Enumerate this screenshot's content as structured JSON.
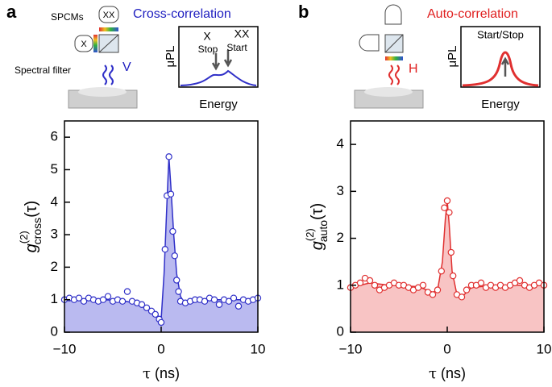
{
  "chart_data": [
    {
      "type": "scatter",
      "panel_label": "a",
      "xlabel": {
        "symbol": "τ",
        "unit": "(ns)"
      },
      "ylabel": {
        "symbol": "g",
        "superscript": "(2)",
        "subscript": "cross",
        "argument": "(τ)"
      },
      "xlim": [
        -10,
        10
      ],
      "ylim": [
        0,
        6.5
      ],
      "xticks": [
        {
          "value": -10,
          "label": "−10"
        },
        0,
        10
      ],
      "yticks": [
        0,
        1,
        2,
        3,
        4,
        5,
        6
      ],
      "series": [
        {
          "type": "area",
          "color": "#3030c8",
          "fill": "#babaf0",
          "x": [
            -10,
            -6,
            -4,
            -2,
            -1,
            -0.5,
            0,
            0.3,
            0.6,
            0.8,
            1.0,
            1.3,
            1.6,
            2,
            2.5,
            3,
            5,
            10
          ],
          "values": [
            1,
            1,
            0.97,
            0.85,
            0.7,
            0.55,
            0.4,
            1.8,
            4.0,
            5.4,
            4.5,
            3.0,
            1.8,
            1.1,
            0.85,
            0.9,
            1.0,
            1.0
          ]
        },
        {
          "type": "scatter",
          "color": "#3030c8",
          "x": [
            -10,
            -9.5,
            -9,
            -8.5,
            -8,
            -7.5,
            -7,
            -6.5,
            -6,
            -5.5,
            -5,
            -4.5,
            -4,
            -3.5,
            -3,
            -2.5,
            -2,
            -1.5,
            -1,
            -0.6,
            -0.2,
            0,
            0.4,
            0.6,
            0.8,
            1.0,
            1.2,
            1.4,
            1.6,
            1.8,
            2,
            2.5,
            3,
            3.5,
            4,
            4.5,
            5,
            5.5,
            6,
            6.5,
            7,
            7.5,
            8,
            8.5,
            9,
            9.5,
            10
          ],
          "values": [
            1.0,
            1.05,
            1.0,
            1.05,
            0.95,
            1.05,
            1.0,
            0.95,
            1.0,
            1.1,
            0.95,
            1.0,
            0.95,
            1.25,
            0.95,
            0.9,
            0.85,
            0.75,
            0.65,
            0.55,
            0.4,
            0.3,
            2.55,
            4.2,
            5.4,
            4.25,
            3.1,
            2.35,
            1.6,
            1.25,
            0.95,
            0.9,
            0.95,
            1.0,
            1.0,
            0.95,
            1.05,
            1.0,
            0.85,
            1.0,
            0.95,
            1.05,
            0.8,
            1.0,
            0.95,
            1.0,
            1.05
          ]
        }
      ]
    },
    {
      "type": "scatter",
      "panel_label": "b",
      "xlabel": {
        "symbol": "τ",
        "unit": "(ns)"
      },
      "ylabel": {
        "symbol": "g",
        "superscript": "(2)",
        "subscript": "auto",
        "argument": "(τ)"
      },
      "xlim": [
        -10,
        10
      ],
      "ylim": [
        0,
        4.5
      ],
      "xticks": [
        {
          "value": -10,
          "label": "−10"
        },
        0,
        10
      ],
      "yticks": [
        0,
        1,
        2,
        3,
        4
      ],
      "series": [
        {
          "type": "area",
          "color": "#e03030",
          "fill": "#f8c4c4",
          "x": [
            -10,
            -8,
            -6,
            -3,
            -1.5,
            -1,
            -0.5,
            -0.2,
            0,
            0.2,
            0.5,
            1,
            1.5,
            2.5,
            5,
            8,
            10
          ],
          "values": [
            0.95,
            1.05,
            1.0,
            0.97,
            0.85,
            0.9,
            1.5,
            2.4,
            2.8,
            2.3,
            1.3,
            0.8,
            0.75,
            0.95,
            1.0,
            1.0,
            1.0
          ]
        },
        {
          "type": "scatter",
          "color": "#e03030",
          "x": [
            -10,
            -9.5,
            -9,
            -8.5,
            -8,
            -7.5,
            -7,
            -6.5,
            -6,
            -5.5,
            -5,
            -4.5,
            -4,
            -3.5,
            -3,
            -2.5,
            -2,
            -1.5,
            -1,
            -0.6,
            -0.3,
            0,
            0.2,
            0.4,
            0.6,
            1,
            1.5,
            2,
            2.5,
            3,
            3.5,
            4,
            4.5,
            5,
            5.5,
            6,
            6.5,
            7,
            7.5,
            8,
            8.5,
            9,
            9.5,
            10
          ],
          "values": [
            0.95,
            1.0,
            1.05,
            1.15,
            1.1,
            1.0,
            0.9,
            0.95,
            1.0,
            1.05,
            1.0,
            1.0,
            0.95,
            0.9,
            0.95,
            1.0,
            0.85,
            0.8,
            0.9,
            1.3,
            2.65,
            2.8,
            2.55,
            1.7,
            1.2,
            0.8,
            0.75,
            0.9,
            1.0,
            1.0,
            1.05,
            0.95,
            1.0,
            0.95,
            1.0,
            0.95,
            1.0,
            1.05,
            1.1,
            1.0,
            0.95,
            1.0,
            1.05,
            1.0
          ]
        }
      ]
    }
  ],
  "insets": [
    {
      "title": "Cross-correlation",
      "detector": "SPCMs",
      "detector_xx": "XX",
      "detector_x": "X",
      "filter": "Spectral filter",
      "polarization": "V",
      "spectrum_ylabel": "μPL",
      "peak_x": "X",
      "peak_xx": "XX",
      "stop": "Stop",
      "start": "Start",
      "spectrum_xlabel": "Energy"
    },
    {
      "title": "Auto-correlation",
      "polarization": "H",
      "spectrum_ylabel": "μPL",
      "peak": "Start/Stop",
      "spectrum_xlabel": "Energy"
    }
  ]
}
